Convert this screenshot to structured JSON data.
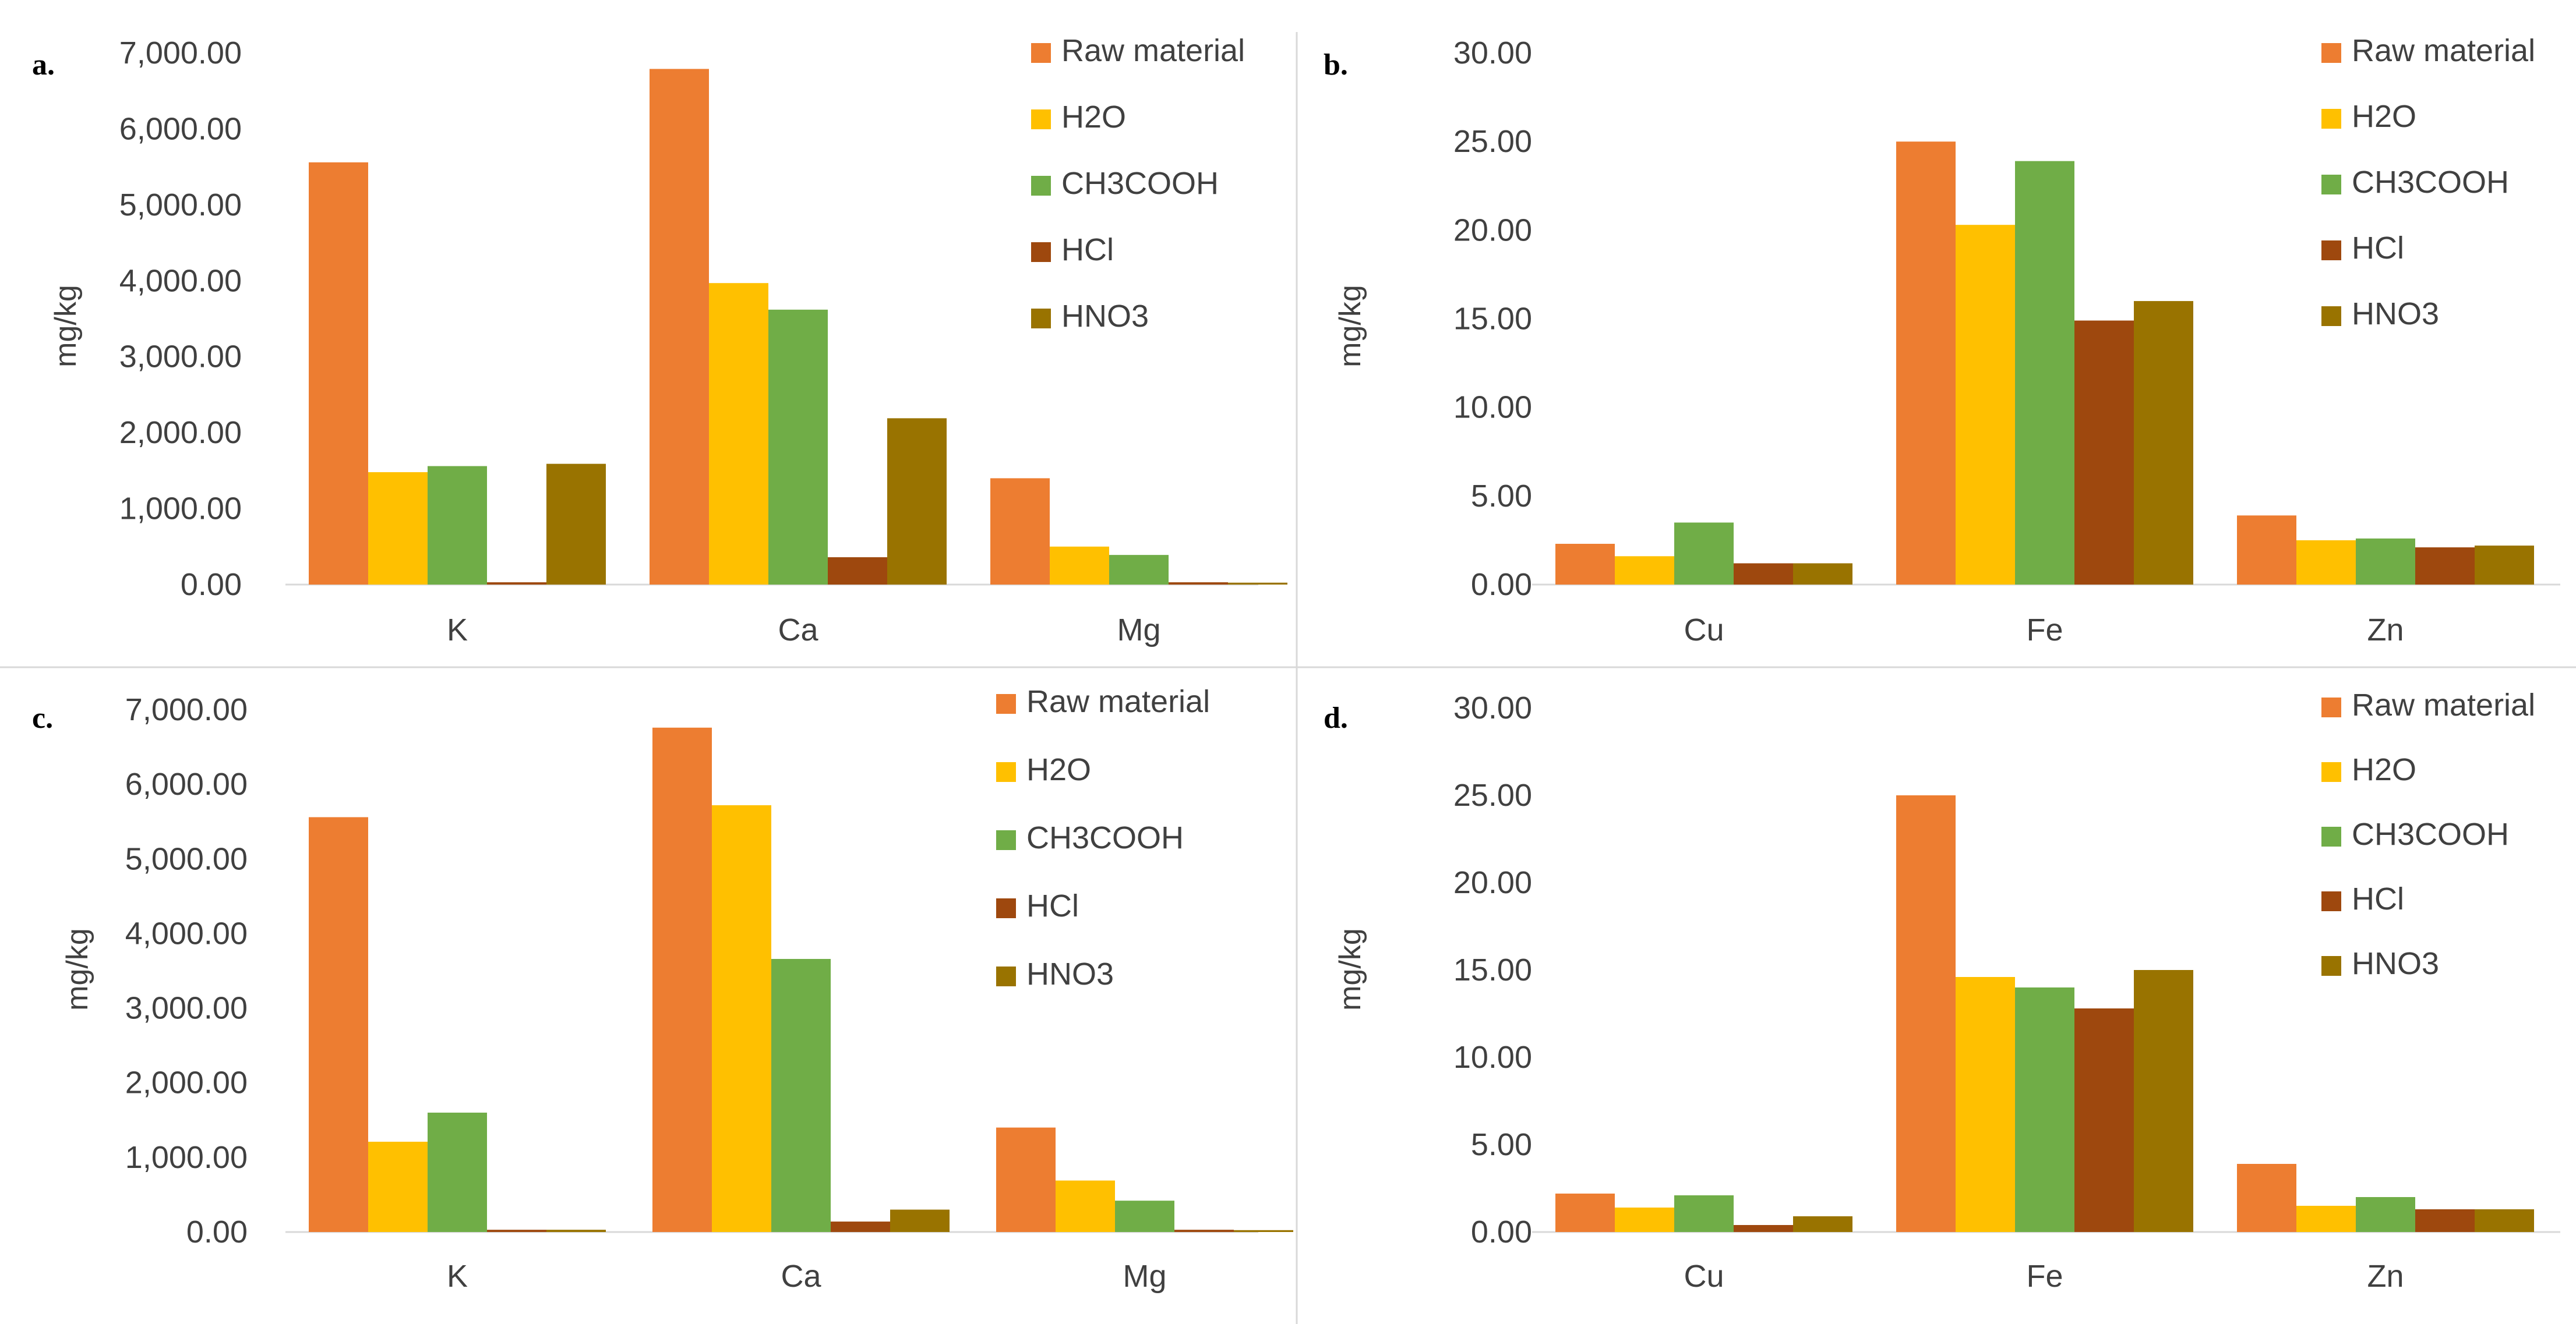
{
  "chart_data": [
    {
      "panel": "a.",
      "type": "bar",
      "ylabel": "mg/kg",
      "ylim": [
        0,
        7000
      ],
      "yticks": [
        "0.00",
        "1,000.00",
        "2,000.00",
        "3,000.00",
        "4,000.00",
        "5,000.00",
        "6,000.00",
        "7,000.00"
      ],
      "categories": [
        "K",
        "Ca",
        "Mg"
      ],
      "legend_position": "top-right",
      "series": [
        {
          "name": "Raw material",
          "color": "#ED7D31",
          "values": [
            5560,
            6790,
            1400
          ]
        },
        {
          "name": "H2O",
          "color": "#FFC000",
          "values": [
            1480,
            3970,
            500
          ]
        },
        {
          "name": "CH3COOH",
          "color": "#70AD47",
          "values": [
            1560,
            3620,
            390
          ]
        },
        {
          "name": "HCl",
          "color": "#9E480E",
          "values": [
            30,
            360,
            30
          ]
        },
        {
          "name": "HNO3",
          "color": "#997300",
          "values": [
            1590,
            2190,
            25
          ]
        }
      ]
    },
    {
      "panel": "b.",
      "type": "bar",
      "ylabel": "mg/kg",
      "ylim": [
        0,
        30
      ],
      "yticks": [
        "0.00",
        "5.00",
        "10.00",
        "15.00",
        "20.00",
        "25.00",
        "30.00"
      ],
      "categories": [
        "Cu",
        "Fe",
        "Zn"
      ],
      "legend_position": "top-right",
      "series": [
        {
          "name": "Raw material",
          "color": "#ED7D31",
          "values": [
            2.3,
            25.0,
            3.9
          ]
        },
        {
          "name": "H2O",
          "color": "#FFC000",
          "values": [
            1.6,
            20.3,
            2.5
          ]
        },
        {
          "name": "CH3COOH",
          "color": "#70AD47",
          "values": [
            3.5,
            23.9,
            2.6
          ]
        },
        {
          "name": "HCl",
          "color": "#9E480E",
          "values": [
            1.2,
            14.9,
            2.1
          ]
        },
        {
          "name": "HNO3",
          "color": "#997300",
          "values": [
            1.2,
            16.0,
            2.2
          ]
        }
      ]
    },
    {
      "panel": "c.",
      "type": "bar",
      "ylabel": "mg/kg",
      "ylim": [
        0,
        7000
      ],
      "yticks": [
        "0.00",
        "1,000.00",
        "2,000.00",
        "3,000.00",
        "4,000.00",
        "5,000.00",
        "6,000.00",
        "7,000.00"
      ],
      "categories": [
        "K",
        "Ca",
        "Mg"
      ],
      "legend_position": "top-right",
      "series": [
        {
          "name": "Raw material",
          "color": "#ED7D31",
          "values": [
            5560,
            6760,
            1400
          ]
        },
        {
          "name": "H2O",
          "color": "#FFC000",
          "values": [
            1210,
            5720,
            690
          ]
        },
        {
          "name": "CH3COOH",
          "color": "#70AD47",
          "values": [
            1600,
            3660,
            420
          ]
        },
        {
          "name": "HCl",
          "color": "#9E480E",
          "values": [
            30,
            140,
            30
          ]
        },
        {
          "name": "HNO3",
          "color": "#997300",
          "values": [
            30,
            300,
            25
          ]
        }
      ]
    },
    {
      "panel": "d.",
      "type": "bar",
      "ylabel": "mg/kg",
      "ylim": [
        0,
        30
      ],
      "yticks": [
        "0.00",
        "5.00",
        "10.00",
        "15.00",
        "20.00",
        "25.00",
        "30.00"
      ],
      "categories": [
        "Cu",
        "Fe",
        "Zn"
      ],
      "legend_position": "top-right",
      "series": [
        {
          "name": "Raw material",
          "color": "#ED7D31",
          "values": [
            2.2,
            25.0,
            3.9
          ]
        },
        {
          "name": "H2O",
          "color": "#FFC000",
          "values": [
            1.4,
            14.6,
            1.5
          ]
        },
        {
          "name": "CH3COOH",
          "color": "#70AD47",
          "values": [
            2.1,
            14.0,
            2.0
          ]
        },
        {
          "name": "HCl",
          "color": "#9E480E",
          "values": [
            0.4,
            12.8,
            1.3
          ]
        },
        {
          "name": "HNO3",
          "color": "#997300",
          "values": [
            0.9,
            15.0,
            1.3
          ]
        }
      ]
    }
  ]
}
